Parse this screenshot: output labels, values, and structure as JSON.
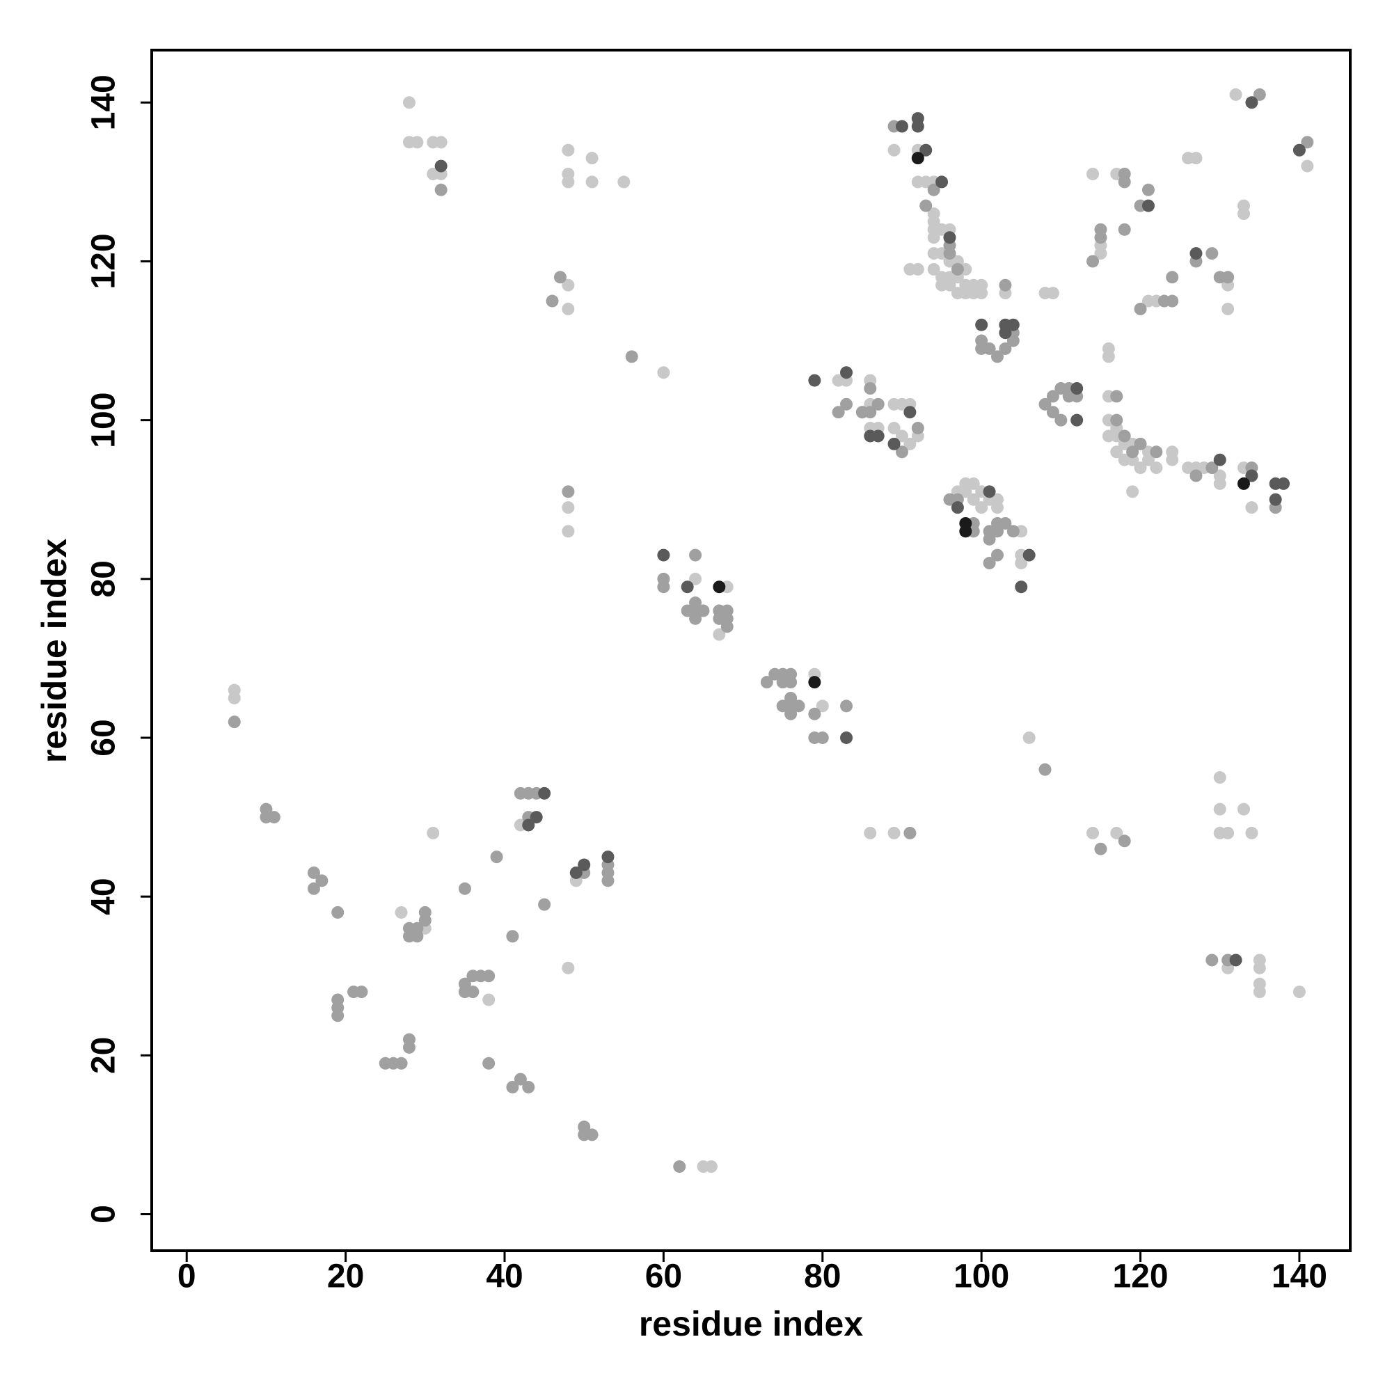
{
  "chart_data": {
    "type": "scatter",
    "x_label": "residue index",
    "y_label": "residue index",
    "xlim": [
      -4.4,
      146.4
    ],
    "ylim": [
      -4.6,
      146.6
    ],
    "xticks": [
      0,
      20,
      40,
      60,
      80,
      100,
      120,
      140
    ],
    "yticks": [
      0,
      20,
      40,
      60,
      80,
      100,
      120,
      140
    ],
    "series": [
      {
        "color": "#c8c8c8",
        "x": [
          6,
          6,
          28,
          28,
          29,
          31,
          32,
          31,
          32,
          48,
          48,
          48,
          51,
          51,
          55,
          48,
          48,
          60,
          48,
          48,
          31,
          27,
          30,
          48,
          38,
          42,
          49,
          65,
          66,
          64,
          68,
          67,
          79,
          80,
          86,
          89,
          82,
          83,
          85,
          86,
          86,
          86,
          87,
          89,
          90,
          91,
          89,
          90,
          92,
          91,
          89,
          92,
          92,
          93,
          94,
          94,
          94,
          94,
          95,
          96,
          94,
          91,
          92,
          94,
          95,
          96,
          97,
          98,
          94,
          95,
          96,
          97,
          98,
          95,
          96,
          97,
          98,
          99,
          100,
          99,
          100,
          103,
          97,
          98,
          98,
          99,
          99,
          100,
          100,
          101,
          102,
          102,
          105,
          105,
          105,
          106,
          108,
          109,
          114,
          115,
          115,
          116,
          116,
          116,
          116,
          117,
          116,
          117,
          118,
          117,
          118,
          119,
          119,
          120,
          121,
          121,
          122,
          119,
          121,
          122,
          124,
          124,
          126,
          127,
          128,
          126,
          127,
          117,
          130,
          130,
          131,
          131,
          132,
          133,
          133,
          133,
          134,
          141,
          114,
          117,
          130,
          130,
          133,
          130,
          131,
          134,
          131,
          135,
          135,
          135,
          135,
          140
        ],
        "values": [
          66,
          65,
          140,
          135,
          135,
          135,
          135,
          131,
          131,
          134,
          131,
          130,
          133,
          130,
          130,
          117,
          114,
          106,
          89,
          86,
          48,
          38,
          36,
          31,
          27,
          49,
          42,
          6,
          6,
          80,
          79,
          73,
          68,
          64,
          48,
          48,
          105,
          105,
          101,
          102,
          105,
          99,
          99,
          102,
          102,
          102,
          99,
          98,
          98,
          97,
          134,
          134,
          130,
          130,
          130,
          126,
          125,
          124,
          124,
          124,
          123,
          119,
          119,
          121,
          121,
          120,
          120,
          119,
          119,
          118,
          118,
          118,
          117,
          117,
          117,
          116,
          116,
          117,
          117,
          116,
          116,
          116,
          91,
          92,
          91,
          92,
          90,
          91,
          89,
          90,
          90,
          89,
          86,
          83,
          82,
          60,
          116,
          116,
          131,
          122,
          121,
          109,
          108,
          103,
          100,
          99,
          98,
          98,
          97,
          96,
          95,
          97,
          95,
          94,
          96,
          95,
          94,
          91,
          115,
          115,
          96,
          95,
          94,
          94,
          94,
          133,
          133,
          131,
          93,
          92,
          117,
          114,
          141,
          127,
          126,
          94,
          89,
          132,
          48,
          48,
          55,
          51,
          51,
          48,
          48,
          48,
          31,
          32,
          31,
          29,
          28,
          28
        ]
      },
      {
        "color": "#a0a0a0",
        "x": [
          6,
          32,
          47,
          46,
          56,
          48,
          10,
          10,
          11,
          16,
          16,
          17,
          19,
          19,
          19,
          19,
          21,
          22,
          25,
          26,
          27,
          28,
          28,
          28,
          28,
          29,
          29,
          30,
          30,
          35,
          35,
          35,
          36,
          36,
          37,
          38,
          39,
          38,
          41,
          41,
          42,
          43,
          45,
          42,
          43,
          44,
          43,
          50,
          53,
          53,
          53,
          50,
          50,
          51,
          62,
          60,
          60,
          64,
          63,
          64,
          64,
          64,
          65,
          67,
          68,
          67,
          68,
          68,
          73,
          74,
          75,
          76,
          75,
          76,
          75,
          76,
          76,
          77,
          76,
          79,
          79,
          80,
          83,
          91,
          82,
          83,
          85,
          86,
          87,
          86,
          90,
          92,
          89,
          94,
          93,
          96,
          96,
          97,
          103,
          100,
          100,
          101,
          102,
          103,
          104,
          104,
          96,
          97,
          99,
          99,
          101,
          101,
          102,
          102,
          103,
          101,
          102,
          104,
          108,
          108,
          109,
          109,
          110,
          110,
          111,
          111,
          112,
          114,
          115,
          115,
          117,
          117,
          118,
          119,
          120,
          122,
          118,
          118,
          118,
          120,
          121,
          120,
          123,
          124,
          124,
          127,
          127,
          129,
          129,
          130,
          131,
          135,
          134,
          137,
          141,
          115,
          118,
          129,
          131
        ],
        "values": [
          62,
          129,
          118,
          115,
          108,
          91,
          51,
          50,
          50,
          43,
          41,
          42,
          38,
          27,
          26,
          25,
          28,
          28,
          19,
          19,
          19,
          22,
          21,
          36,
          35,
          36,
          35,
          38,
          37,
          41,
          29,
          28,
          28,
          30,
          30,
          30,
          45,
          19,
          35,
          16,
          17,
          16,
          39,
          53,
          53,
          53,
          50,
          43,
          44,
          43,
          42,
          11,
          10,
          10,
          6,
          80,
          79,
          83,
          76,
          76,
          75,
          77,
          76,
          76,
          76,
          75,
          75,
          74,
          67,
          68,
          68,
          68,
          67,
          67,
          64,
          64,
          63,
          64,
          65,
          63,
          60,
          60,
          64,
          48,
          101,
          102,
          101,
          101,
          102,
          104,
          96,
          99,
          137,
          129,
          127,
          122,
          121,
          119,
          117,
          110,
          109,
          109,
          108,
          109,
          110,
          111,
          90,
          90,
          87,
          86,
          86,
          85,
          87,
          86,
          87,
          82,
          83,
          86,
          56,
          102,
          103,
          101,
          100,
          104,
          104,
          103,
          103,
          120,
          124,
          123,
          103,
          100,
          98,
          96,
          97,
          96,
          131,
          130,
          124,
          127,
          129,
          114,
          115,
          115,
          118,
          93,
          120,
          121,
          94,
          118,
          118,
          141,
          94,
          89,
          135,
          46,
          47,
          32,
          32
        ]
      },
      {
        "color": "#5a5a5a",
        "x": [
          32,
          43,
          44,
          45,
          49,
          50,
          53,
          60,
          63,
          83,
          79,
          83,
          86,
          87,
          89,
          91,
          90,
          92,
          92,
          93,
          95,
          96,
          100,
          103,
          103,
          104,
          97,
          101,
          106,
          105,
          112,
          112,
          121,
          127,
          130,
          134,
          134,
          137,
          138,
          137,
          140,
          132
        ],
        "values": [
          132,
          49,
          50,
          53,
          43,
          44,
          45,
          83,
          79,
          60,
          105,
          106,
          98,
          98,
          97,
          101,
          137,
          138,
          137,
          134,
          130,
          123,
          112,
          112,
          111,
          112,
          89,
          91,
          83,
          79,
          104,
          100,
          127,
          121,
          95,
          140,
          93,
          92,
          92,
          90,
          134,
          32
        ]
      },
      {
        "color": "#1a1a1a",
        "x": [
          67,
          79,
          92,
          98,
          98,
          133
        ],
        "values": [
          79,
          67,
          133,
          87,
          86,
          92
        ]
      }
    ]
  }
}
